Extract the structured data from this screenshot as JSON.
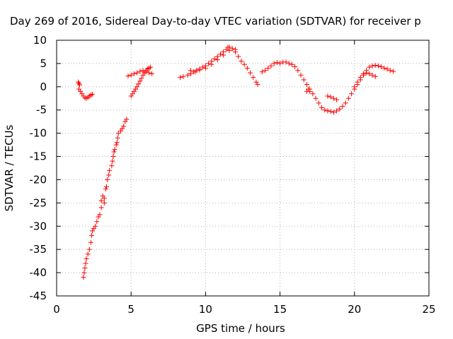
{
  "chart_data": {
    "type": "scatter",
    "title": "Day 269 of 2016, Sidereal Day-to-day VTEC variation (SDTVAR) for receiver p",
    "xlabel": "GPS time / hours",
    "ylabel": "SDTVAR / TECUs",
    "xlim": [
      0,
      25
    ],
    "ylim": [
      -45,
      10
    ],
    "xticks": [
      0,
      5,
      10,
      15,
      20,
      25
    ],
    "yticks": [
      10,
      5,
      0,
      -5,
      -10,
      -15,
      -20,
      -25,
      -30,
      -35,
      -40,
      -45
    ],
    "grid": true,
    "marker": "+",
    "series": [
      {
        "name": "SDTVAR",
        "color": "#ff0000",
        "points": [
          [
            1.45,
            1.0
          ],
          [
            1.5,
            0.7
          ],
          [
            1.55,
            0.4
          ],
          [
            1.5,
            -0.5
          ],
          [
            1.6,
            -1.0
          ],
          [
            1.7,
            -1.5
          ],
          [
            1.8,
            -2.0
          ],
          [
            1.9,
            -2.4
          ],
          [
            2.0,
            -2.5
          ],
          [
            2.1,
            -2.3
          ],
          [
            2.2,
            -2.0
          ],
          [
            2.3,
            -1.8
          ],
          [
            2.4,
            -1.6
          ],
          [
            1.8,
            -41.0
          ],
          [
            1.85,
            -40.0
          ],
          [
            1.9,
            -39.0
          ],
          [
            1.95,
            -38.0
          ],
          [
            2.0,
            -37.0
          ],
          [
            2.1,
            -36.0
          ],
          [
            2.2,
            -35.0
          ],
          [
            2.3,
            -33.5
          ],
          [
            2.35,
            -32.0
          ],
          [
            2.4,
            -31.0
          ],
          [
            2.5,
            -30.5
          ],
          [
            2.6,
            -30.0
          ],
          [
            2.7,
            -29.0
          ],
          [
            2.8,
            -28.0
          ],
          [
            2.9,
            -27.5
          ],
          [
            3.0,
            -26.0
          ],
          [
            3.0,
            -24.5
          ],
          [
            3.1,
            -23.5
          ],
          [
            3.2,
            -24.0
          ],
          [
            3.2,
            -25.0
          ],
          [
            3.3,
            -22.0
          ],
          [
            3.35,
            -21.5
          ],
          [
            3.4,
            -20.0
          ],
          [
            3.5,
            -19.0
          ],
          [
            3.55,
            -18.0
          ],
          [
            3.7,
            -17.0
          ],
          [
            3.75,
            -16.0
          ],
          [
            3.8,
            -15.0
          ],
          [
            3.85,
            -14.0
          ],
          [
            3.9,
            -13.5
          ],
          [
            4.0,
            -12.5
          ],
          [
            4.05,
            -12.0
          ],
          [
            4.1,
            -11.0
          ],
          [
            4.15,
            -10.0
          ],
          [
            4.3,
            -9.5
          ],
          [
            4.4,
            -9.0
          ],
          [
            4.5,
            -8.5
          ],
          [
            4.6,
            -7.5
          ],
          [
            4.7,
            -7.0
          ],
          [
            4.8,
            2.3
          ],
          [
            5.0,
            2.5
          ],
          [
            5.2,
            2.8
          ],
          [
            5.4,
            3.0
          ],
          [
            5.6,
            3.3
          ],
          [
            5.8,
            3.5
          ],
          [
            6.0,
            3.2
          ],
          [
            6.2,
            3.0
          ],
          [
            6.4,
            2.8
          ],
          [
            5.0,
            -2.0
          ],
          [
            5.1,
            -1.5
          ],
          [
            5.2,
            -1.0
          ],
          [
            5.3,
            -0.5
          ],
          [
            5.4,
            0.0
          ],
          [
            5.5,
            0.6
          ],
          [
            5.6,
            1.2
          ],
          [
            5.7,
            1.8
          ],
          [
            5.8,
            2.5
          ],
          [
            5.9,
            3.0
          ],
          [
            6.0,
            3.5
          ],
          [
            6.1,
            3.8
          ],
          [
            6.2,
            4.0
          ],
          [
            6.3,
            4.2
          ],
          [
            8.3,
            2.0
          ],
          [
            8.5,
            2.2
          ],
          [
            8.8,
            2.5
          ],
          [
            9.0,
            2.8
          ],
          [
            9.2,
            3.2
          ],
          [
            9.4,
            3.5
          ],
          [
            9.6,
            3.8
          ],
          [
            9.8,
            4.2
          ],
          [
            10.0,
            4.5
          ],
          [
            10.2,
            5.0
          ],
          [
            10.4,
            5.5
          ],
          [
            10.6,
            6.0
          ],
          [
            10.8,
            6.5
          ],
          [
            11.0,
            7.0
          ],
          [
            11.2,
            7.5
          ],
          [
            11.4,
            8.0
          ],
          [
            11.5,
            8.5
          ],
          [
            11.6,
            8.5
          ],
          [
            11.8,
            8.2
          ],
          [
            12.0,
            7.5
          ],
          [
            12.2,
            6.5
          ],
          [
            12.4,
            5.5
          ],
          [
            12.6,
            4.8
          ],
          [
            12.8,
            4.0
          ],
          [
            13.0,
            3.0
          ],
          [
            13.2,
            2.0
          ],
          [
            13.4,
            1.0
          ],
          [
            13.5,
            0.5
          ],
          [
            9.0,
            3.5
          ],
          [
            9.3,
            3.2
          ],
          [
            9.6,
            3.6
          ],
          [
            10.0,
            4.0
          ],
          [
            10.4,
            4.8
          ],
          [
            10.8,
            5.8
          ],
          [
            11.2,
            6.8
          ],
          [
            11.6,
            7.8
          ],
          [
            12.0,
            8.0
          ],
          [
            13.8,
            3.2
          ],
          [
            14.0,
            3.5
          ],
          [
            14.2,
            4.0
          ],
          [
            14.4,
            4.5
          ],
          [
            14.6,
            5.0
          ],
          [
            14.8,
            5.2
          ],
          [
            15.0,
            5.0
          ],
          [
            15.2,
            5.3
          ],
          [
            15.4,
            5.3
          ],
          [
            15.6,
            5.0
          ],
          [
            15.8,
            4.8
          ],
          [
            16.0,
            4.3
          ],
          [
            16.2,
            3.5
          ],
          [
            16.4,
            2.5
          ],
          [
            16.6,
            1.5
          ],
          [
            16.8,
            0.5
          ],
          [
            16.9,
            -0.5
          ],
          [
            17.0,
            -1.0
          ],
          [
            17.2,
            -1.5
          ],
          [
            17.4,
            -2.5
          ],
          [
            17.6,
            -3.5
          ],
          [
            17.8,
            -4.5
          ],
          [
            18.0,
            -5.0
          ],
          [
            18.2,
            -5.2
          ],
          [
            18.4,
            -5.3
          ],
          [
            18.6,
            -5.5
          ],
          [
            18.8,
            -5.2
          ],
          [
            19.0,
            -4.8
          ],
          [
            19.2,
            -4.2
          ],
          [
            19.4,
            -3.5
          ],
          [
            19.6,
            -2.5
          ],
          [
            19.8,
            -1.5
          ],
          [
            20.0,
            -0.5
          ],
          [
            20.2,
            0.5
          ],
          [
            20.4,
            1.5
          ],
          [
            20.6,
            2.5
          ],
          [
            20.8,
            3.5
          ],
          [
            21.0,
            4.2
          ],
          [
            21.2,
            4.5
          ],
          [
            21.4,
            4.6
          ],
          [
            21.6,
            4.5
          ],
          [
            21.8,
            4.3
          ],
          [
            22.0,
            4.0
          ],
          [
            22.2,
            3.8
          ],
          [
            22.4,
            3.5
          ],
          [
            22.6,
            3.3
          ],
          [
            16.8,
            -1.0
          ],
          [
            17.0,
            -0.5
          ],
          [
            18.2,
            -2.0
          ],
          [
            18.4,
            -2.2
          ],
          [
            18.6,
            -2.5
          ],
          [
            18.8,
            -2.8
          ],
          [
            20.0,
            0.0
          ],
          [
            20.2,
            1.0
          ],
          [
            20.4,
            2.0
          ],
          [
            20.6,
            2.8
          ],
          [
            20.8,
            3.0
          ],
          [
            21.0,
            2.8
          ],
          [
            21.2,
            2.5
          ],
          [
            21.4,
            2.2
          ]
        ]
      }
    ]
  }
}
